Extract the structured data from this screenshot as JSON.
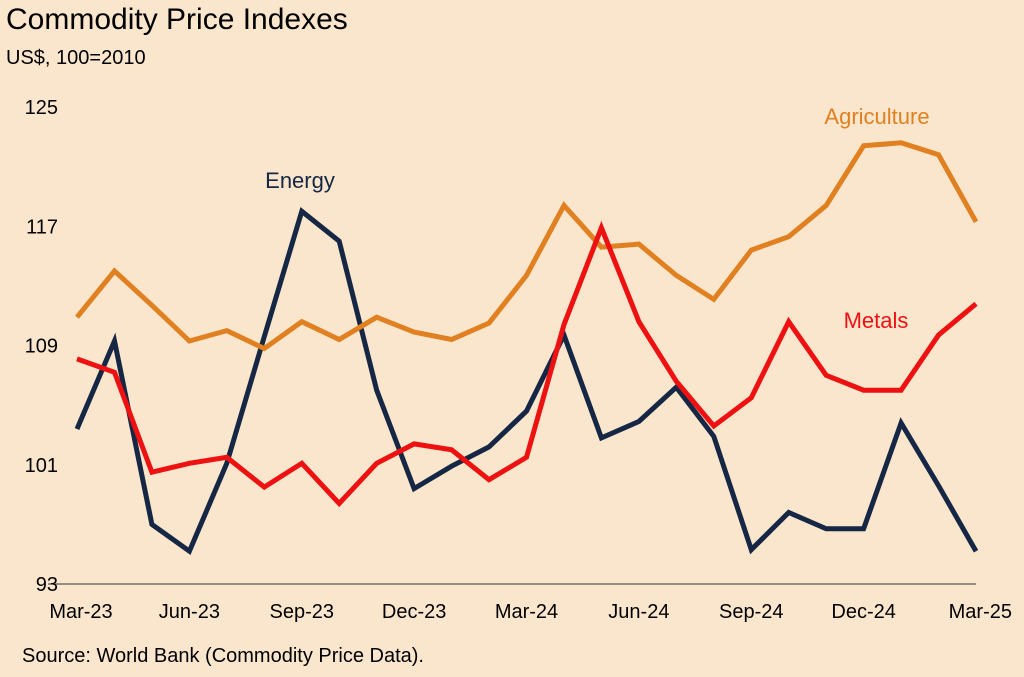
{
  "chart_data": {
    "type": "line",
    "title": "Commodity Price Indexes",
    "subtitle": "US$, 100=2010",
    "source": "Source: World Bank (Commodity Price Data).",
    "xlabel": "",
    "ylabel": "",
    "ylim": [
      93,
      125
    ],
    "yticks": [
      "125",
      "117",
      "109",
      "101",
      "93"
    ],
    "categories": [
      "Mar-23",
      "Apr-23",
      "May-23",
      "Jun-23",
      "Jul-23",
      "Aug-23",
      "Sep-23",
      "Oct-23",
      "Nov-23",
      "Dec-23",
      "Jan-24",
      "Feb-24",
      "Mar-24",
      "Apr-24",
      "May-24",
      "Jun-24",
      "Jul-24",
      "Aug-24",
      "Sep-24",
      "Oct-24",
      "Nov-24",
      "Dec-24",
      "Jan-25",
      "Feb-25",
      "Mar-25"
    ],
    "xtick_labels": [
      "Mar-23",
      "Jun-23",
      "Sep-23",
      "Dec-23",
      "Mar-24",
      "Jun-24",
      "Sep-24",
      "Dec-24",
      "Mar-25"
    ],
    "series": [
      {
        "name": "Energy",
        "color": "#152744",
        "values": [
          103.4,
          109.3,
          97.0,
          95.2,
          101.1,
          109.6,
          118.0,
          116.0,
          106.0,
          99.4,
          100.9,
          102.2,
          104.6,
          109.7,
          102.8,
          103.9,
          106.2,
          102.9,
          95.3,
          97.8,
          96.7,
          96.7,
          103.8,
          99.6,
          95.2
        ]
      },
      {
        "name": "Agriculture",
        "color": "#e08020",
        "values": [
          110.9,
          114.0,
          111.7,
          109.3,
          110.0,
          108.8,
          110.6,
          109.4,
          110.9,
          109.9,
          109.4,
          110.5,
          113.7,
          118.4,
          115.6,
          115.8,
          113.7,
          112.1,
          115.4,
          116.3,
          118.4,
          122.4,
          122.6,
          121.8,
          117.3
        ]
      },
      {
        "name": "Metals",
        "color": "#ee1111",
        "values": [
          108.1,
          107.2,
          100.5,
          101.1,
          101.5,
          99.5,
          101.1,
          98.4,
          101.1,
          102.4,
          102.0,
          100.0,
          101.5,
          110.4,
          116.9,
          110.6,
          106.6,
          103.6,
          105.5,
          110.6,
          107.0,
          106.0,
          106.0,
          109.7,
          111.8
        ]
      }
    ],
    "series_labels": [
      {
        "text": "Energy",
        "color": "#152744"
      },
      {
        "text": "Agriculture",
        "color": "#e08020"
      },
      {
        "text": "Metals",
        "color": "#ee1111"
      }
    ]
  }
}
